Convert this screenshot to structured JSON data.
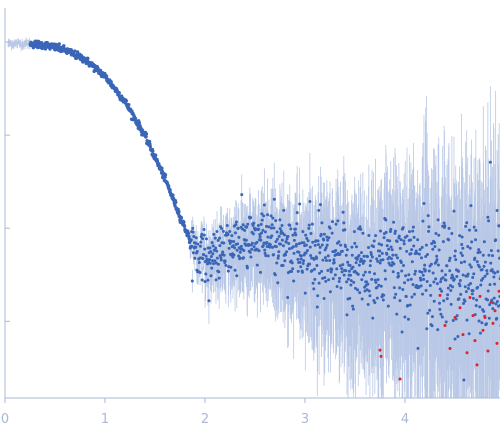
{
  "chart_data": {
    "type": "scatter",
    "title": "",
    "xlabel": "",
    "ylabel": "",
    "xlim": [
      0,
      4.95
    ],
    "x_ticks": [
      0,
      1,
      2,
      3,
      4
    ],
    "x_tick_labels": [
      "0",
      "1",
      "2",
      "3",
      "4"
    ],
    "y_ticks": [
      1.0,
      0.1,
      0.01,
      0.001
    ],
    "y_tick_labels": [
      "",
      "",
      "",
      ""
    ],
    "y_scale": "log",
    "ylim": [
      0.00015,
      2.0
    ],
    "grid": false,
    "legend": "none",
    "colors": {
      "points": "#3a66b8",
      "error_bars": "#b9c8e6",
      "outliers": "#e0232a",
      "axis": "#a9b8d6"
    },
    "series": [
      {
        "role": "intensity-profile",
        "points": [
          [
            0.25,
            0.96
          ],
          [
            0.4,
            0.93
          ],
          [
            0.6,
            0.82
          ],
          [
            0.8,
            0.65
          ],
          [
            1.0,
            0.43
          ],
          [
            1.2,
            0.23
          ],
          [
            1.4,
            0.098
          ],
          [
            1.6,
            0.034
          ],
          [
            1.75,
            0.0135
          ],
          [
            1.85,
            0.0075
          ],
          [
            1.95,
            0.0056
          ],
          [
            2.05,
            0.0046
          ],
          [
            2.2,
            0.0058
          ],
          [
            2.4,
            0.007
          ],
          [
            2.6,
            0.0074
          ],
          [
            2.8,
            0.0068
          ],
          [
            3.0,
            0.0055
          ],
          [
            3.2,
            0.0042
          ],
          [
            3.4,
            0.0038
          ],
          [
            3.6,
            0.0039
          ],
          [
            3.8,
            0.0041
          ],
          [
            4.0,
            0.004
          ],
          [
            4.2,
            0.0035
          ],
          [
            4.4,
            0.0031
          ],
          [
            4.6,
            0.0029
          ],
          [
            4.8,
            0.0028
          ],
          [
            4.95,
            0.0027
          ]
        ]
      },
      {
        "role": "outliers",
        "points": [
          [
            3.75,
            0.00049
          ],
          [
            3.76,
            0.00042
          ],
          [
            3.95,
            0.00024
          ],
          [
            4.35,
            0.0019
          ],
          [
            4.4,
            0.0009
          ],
          [
            4.45,
            0.00051
          ],
          [
            4.5,
            0.0011
          ],
          [
            4.55,
            0.0014
          ],
          [
            4.58,
            0.00072
          ],
          [
            4.62,
            0.00046
          ],
          [
            4.65,
            0.0018
          ],
          [
            4.68,
            0.00115
          ],
          [
            4.7,
            0.00062
          ],
          [
            4.72,
            0.00034
          ],
          [
            4.75,
            0.00185
          ],
          [
            4.78,
            0.0008
          ],
          [
            4.8,
            0.0011
          ],
          [
            4.83,
            0.00048
          ],
          [
            4.86,
            0.0016
          ],
          [
            4.88,
            0.00095
          ],
          [
            4.9,
            0.0013
          ],
          [
            4.92,
            0.00058
          ],
          [
            4.94,
            0.0021
          ],
          [
            4.96,
            0.0009
          ]
        ]
      }
    ],
    "approx_points_per_series": 1400
  }
}
